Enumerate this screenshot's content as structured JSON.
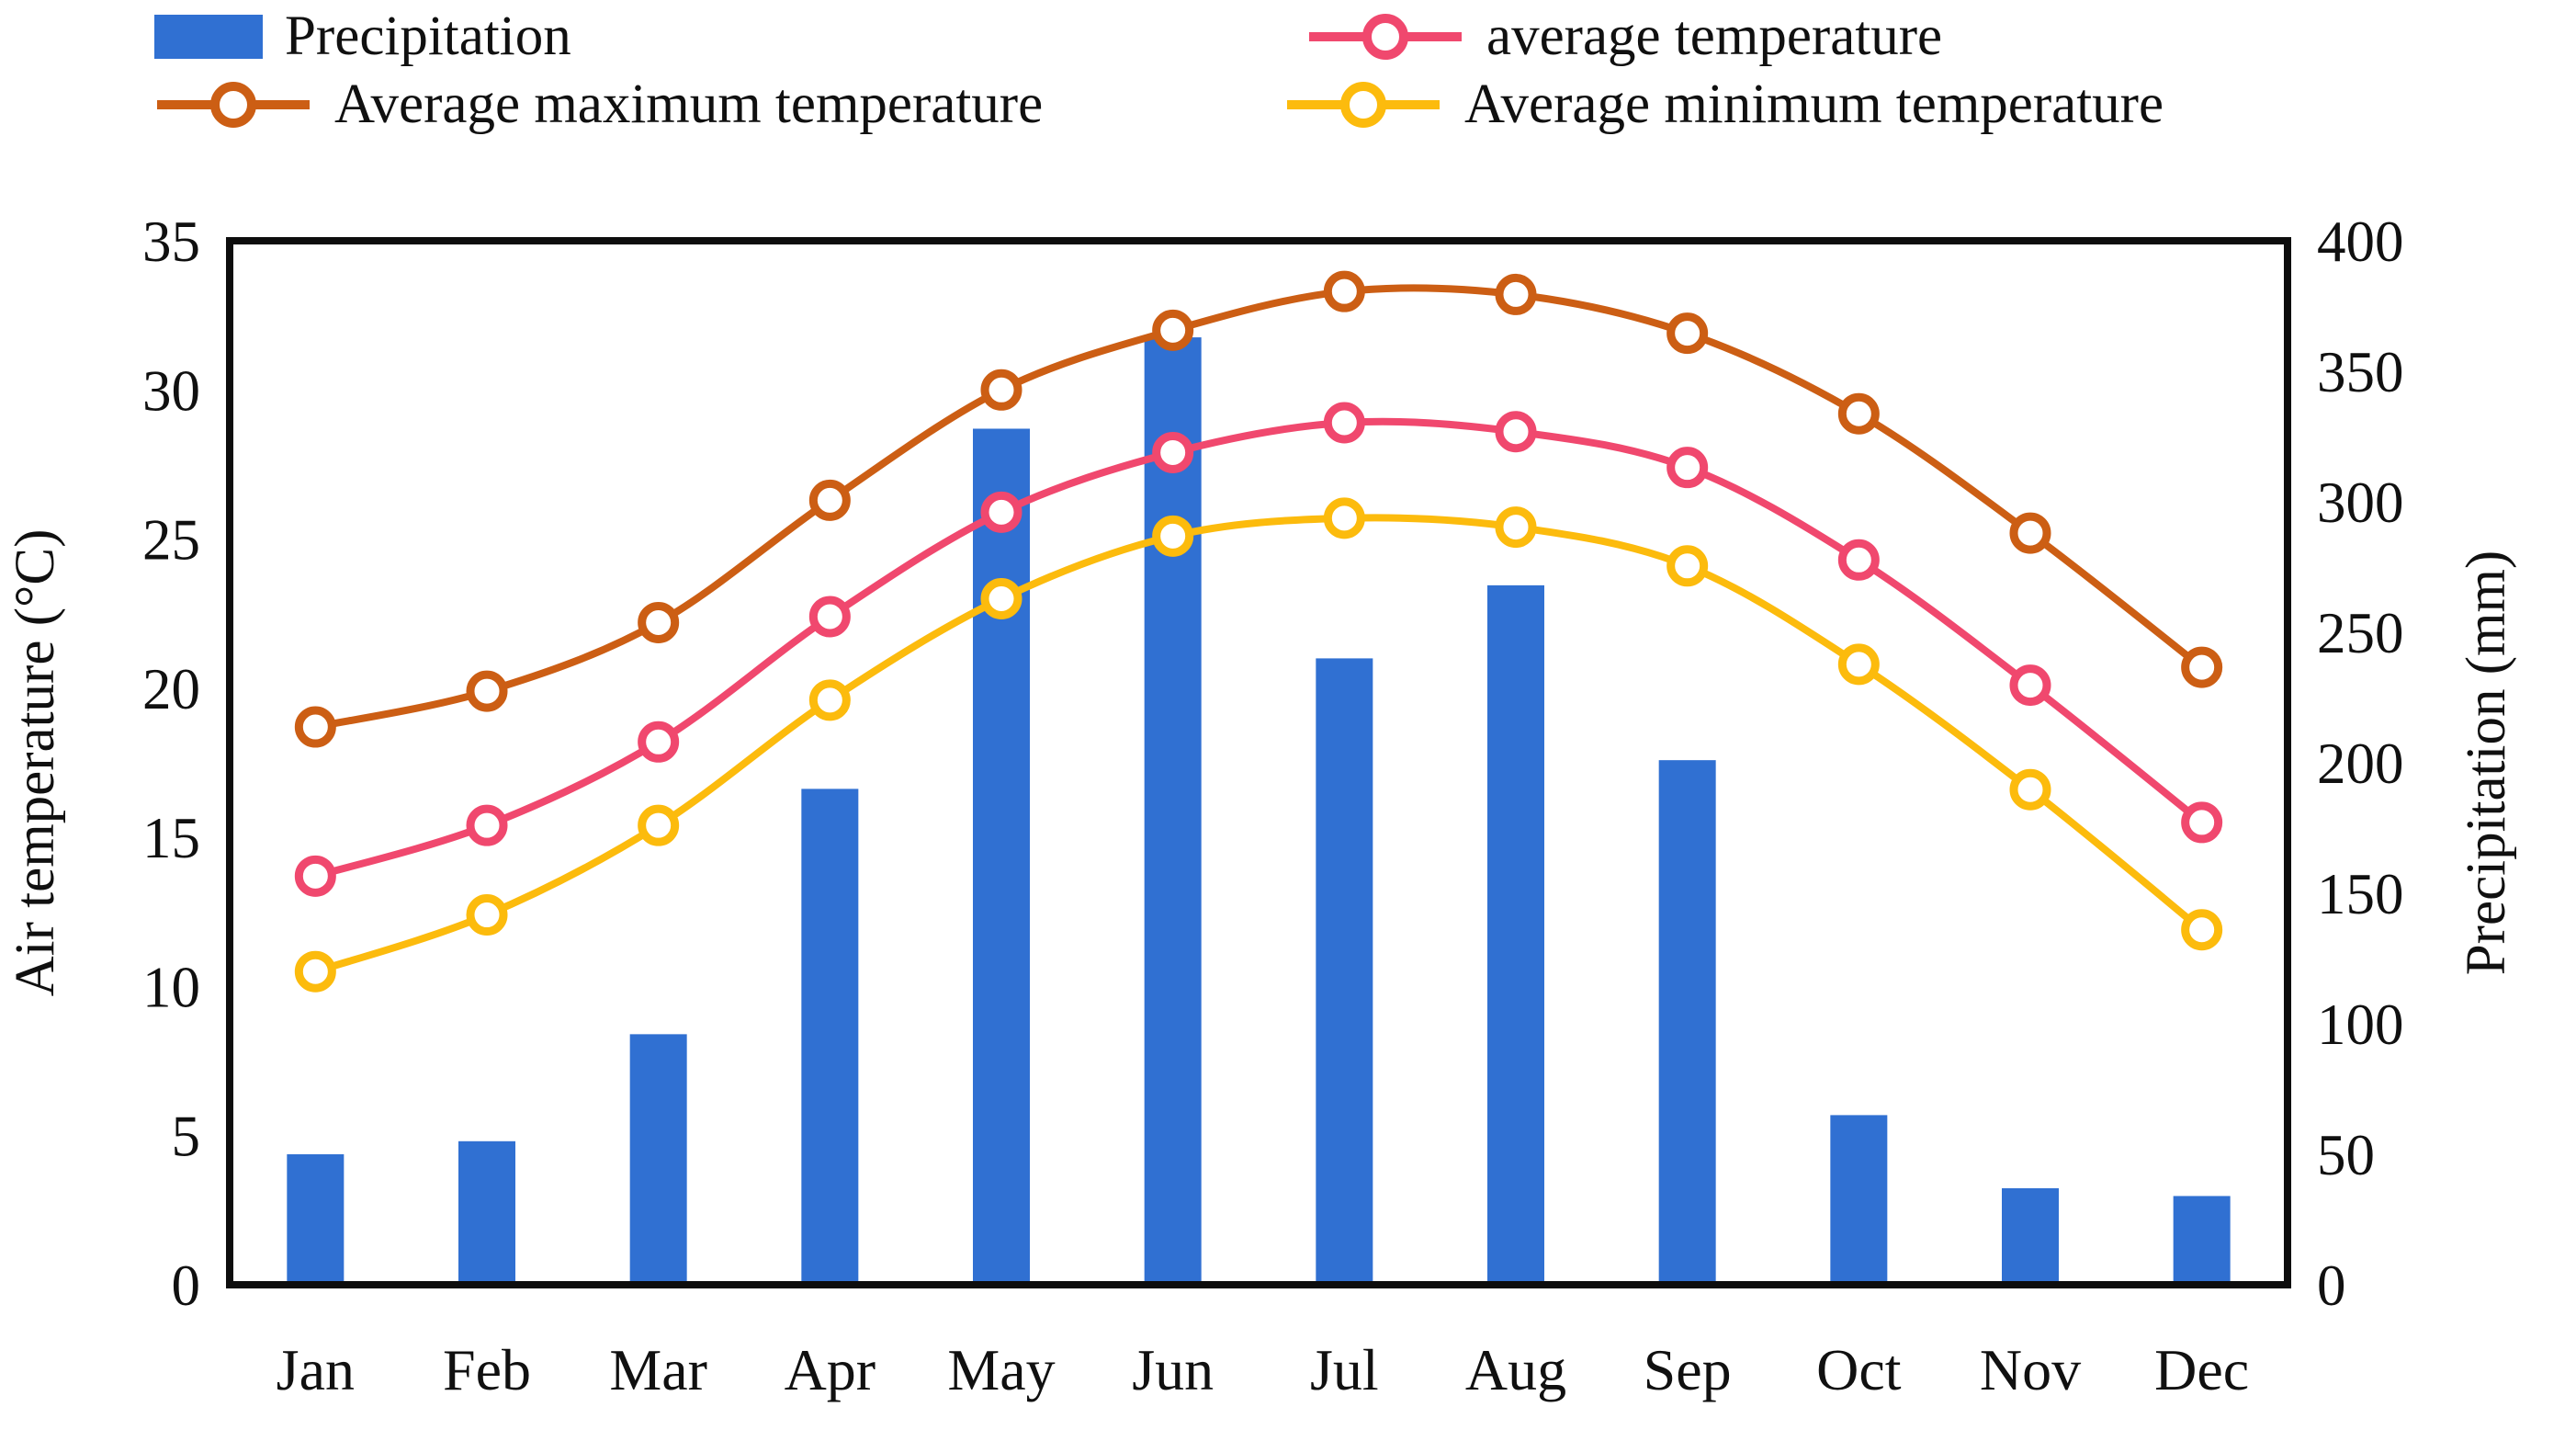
{
  "figure": {
    "legend": [
      {
        "label": "Precipitation",
        "marker": "bar-swatch",
        "color": "#3070D2"
      },
      {
        "label": "average temperature",
        "marker": "line-circle",
        "color": "#F0486E"
      },
      {
        "label": "Average maximum temperature",
        "marker": "line-circle",
        "color": "#CC5E14"
      },
      {
        "label": "Average minimum temperature",
        "marker": "line-circle",
        "color": "#FCBB0D"
      }
    ]
  },
  "chart_data": {
    "type": "combo bar+line",
    "categories": [
      "Jan",
      "Feb",
      "Mar",
      "Apr",
      "May",
      "Jun",
      "Jul",
      "Aug",
      "Sep",
      "Oct",
      "Nov",
      "Dec"
    ],
    "series": [
      {
        "name": "Precipitation",
        "type": "bar",
        "axis": "right",
        "unit": "mm",
        "color": "#3070D2",
        "values": [
          50,
          55,
          96,
          190,
          328,
          363,
          240,
          268,
          201,
          65,
          37,
          34
        ]
      },
      {
        "name": "Average maximum temperature",
        "type": "line",
        "axis": "left",
        "unit": "°C",
        "color": "#CC5E14",
        "values": [
          18.7,
          19.9,
          22.2,
          26.3,
          30.0,
          32.0,
          33.3,
          33.2,
          31.9,
          29.2,
          25.2,
          20.7
        ]
      },
      {
        "name": "average temperature",
        "type": "line",
        "axis": "left",
        "unit": "°C",
        "color": "#F0486E",
        "values": [
          13.7,
          15.4,
          18.2,
          22.4,
          25.9,
          27.9,
          28.9,
          28.6,
          27.4,
          24.3,
          20.1,
          15.5
        ]
      },
      {
        "name": "Average minimum temperature",
        "type": "line",
        "axis": "left",
        "unit": "°C",
        "color": "#FCBB0D",
        "values": [
          10.5,
          12.4,
          15.4,
          19.6,
          23.0,
          25.1,
          25.7,
          25.4,
          24.1,
          20.8,
          16.6,
          11.9
        ]
      }
    ],
    "left_axis": {
      "label": "Air temperature (°C)",
      "min": 0,
      "max": 35,
      "step": 5,
      "ticks": [
        "0",
        "5",
        "10",
        "15",
        "20",
        "25",
        "30",
        "35"
      ]
    },
    "right_axis": {
      "label": "Precipitation (mm)",
      "min": 0,
      "max": 400,
      "step": 50,
      "ticks": [
        "0",
        "50",
        "100",
        "150",
        "200",
        "250",
        "300",
        "350",
        "400"
      ]
    },
    "grid": false,
    "legend_position": "top"
  }
}
